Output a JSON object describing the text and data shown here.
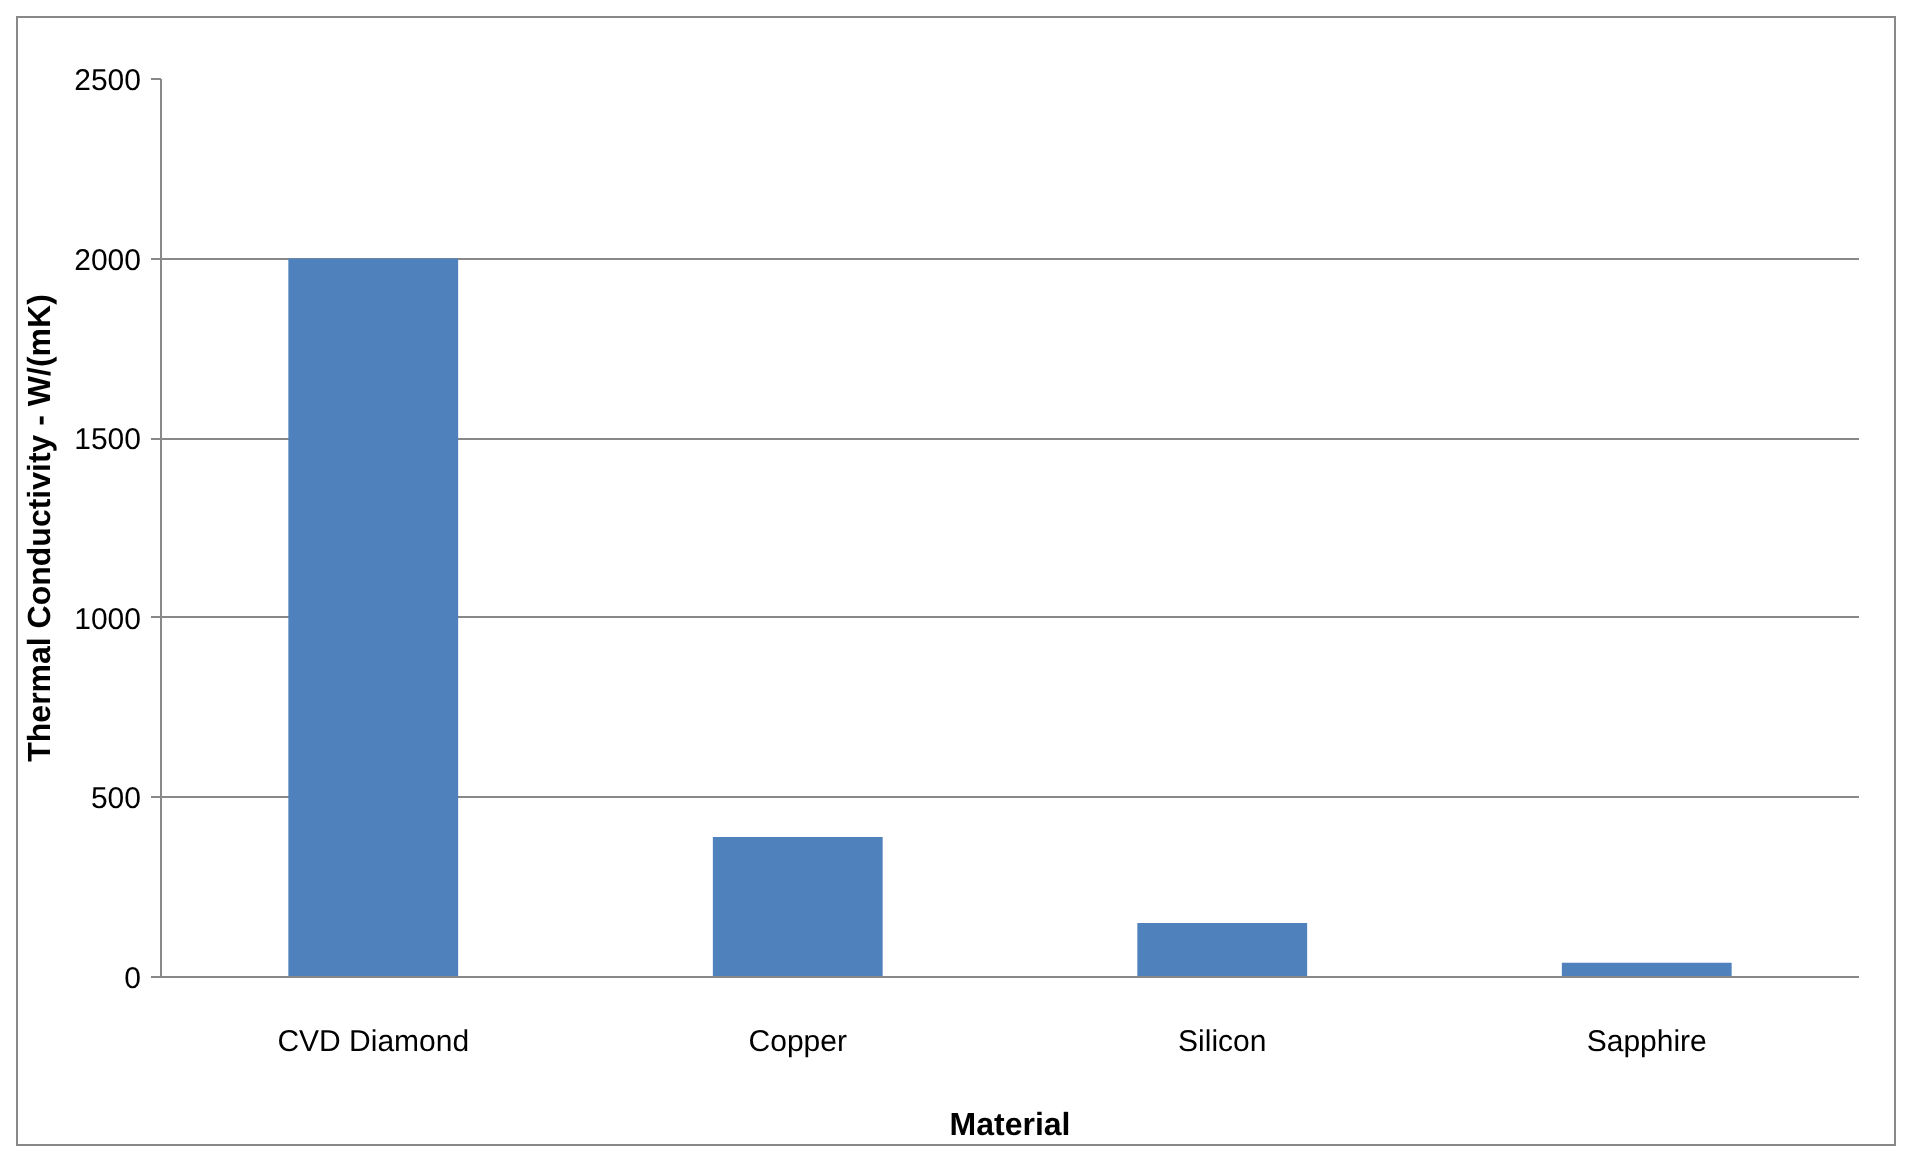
{
  "chart_data": {
    "type": "bar",
    "xlabel": "Material",
    "ylabel": "Thermal Conductivity - W/(mK)",
    "categories": [
      "CVD Diamond",
      "Copper",
      "Silicon",
      "Sapphire"
    ],
    "values": [
      2000,
      390,
      150,
      40
    ],
    "color": "#4f81bd",
    "ylim": [
      0,
      2500
    ],
    "yticks": [
      0,
      500,
      1000,
      1500,
      2000,
      2500
    ],
    "grid": "y"
  }
}
